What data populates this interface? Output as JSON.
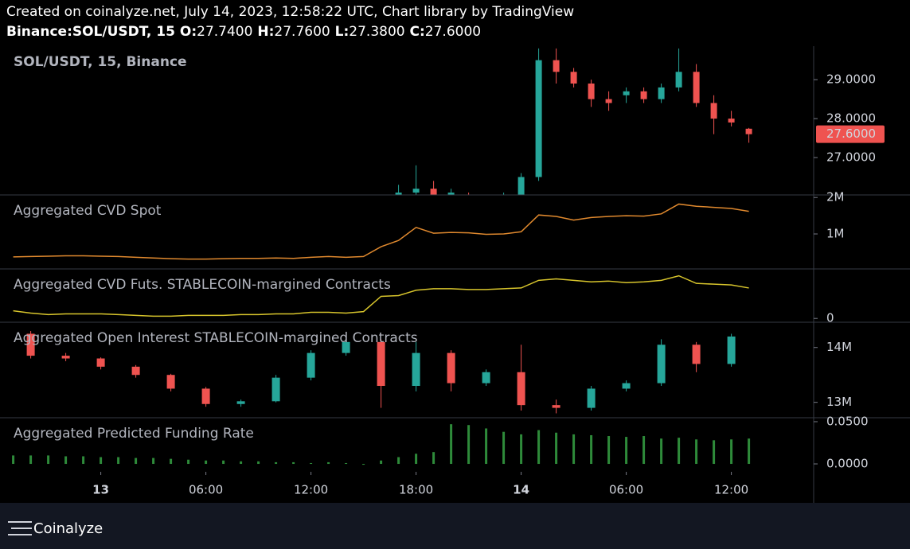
{
  "header": {
    "line1": "Created on coinalyze.net, July 14, 2023, 12:58:22 UTC, Chart library by TradingView",
    "symbol": "Binance:SOL/USDT, 15",
    "ohlc": [
      {
        "label": "O:",
        "value": "27.7400"
      },
      {
        "label": "H:",
        "value": "27.7600"
      },
      {
        "label": "L:",
        "value": "27.3800"
      },
      {
        "label": "C:",
        "value": "27.6000"
      }
    ]
  },
  "footer": {
    "brand": "Coinalyze"
  },
  "chart_data": [
    {
      "type": "candlestick",
      "title": "SOL/USDT, 15, Binance",
      "up_color": "#26a69a",
      "down_color": "#ef5350",
      "x": [
        17,
        18,
        19,
        20,
        21,
        22,
        23,
        24,
        25,
        26,
        27,
        28,
        29,
        30,
        31,
        32,
        33,
        34,
        35,
        36,
        37
      ],
      "open": [
        25.8,
        26.1,
        26.2,
        26.0,
        26.0,
        25.9,
        25.8,
        26.0,
        26.5,
        29.5,
        29.2,
        28.9,
        28.5,
        28.6,
        28.7,
        28.5,
        28.8,
        29.2,
        28.4,
        28.0,
        27.74
      ],
      "high": [
        26.3,
        26.8,
        26.4,
        26.2,
        26.1,
        26.0,
        26.1,
        26.6,
        29.8,
        29.8,
        29.3,
        29.0,
        28.7,
        28.8,
        28.8,
        28.9,
        29.8,
        29.4,
        28.6,
        28.2,
        27.76
      ],
      "low": [
        25.7,
        25.9,
        25.8,
        25.8,
        25.7,
        25.7,
        25.7,
        25.9,
        26.4,
        28.9,
        28.8,
        28.3,
        28.2,
        28.4,
        28.4,
        28.4,
        28.7,
        28.3,
        27.6,
        27.8,
        27.38
      ],
      "close": [
        26.1,
        26.2,
        26.0,
        26.1,
        25.9,
        25.8,
        26.0,
        26.5,
        29.5,
        29.2,
        28.9,
        28.5,
        28.4,
        28.7,
        28.5,
        28.8,
        29.2,
        28.4,
        28.0,
        27.9,
        27.6
      ],
      "last_price": {
        "value": 27.6,
        "label": "27.6000"
      },
      "ylim": [
        26.04,
        29.86
      ],
      "yticks": [
        {
          "value": 27,
          "label": "27.0000"
        },
        {
          "value": 28,
          "label": "28.0000"
        },
        {
          "value": 29,
          "label": "29.0000"
        }
      ]
    },
    {
      "type": "line",
      "title": "Aggregated CVD Spot",
      "color": "#e0892e",
      "x": [
        -5,
        -4,
        -3,
        -2,
        -1,
        0,
        1,
        2,
        3,
        4,
        5,
        6,
        7,
        8,
        9,
        10,
        11,
        12,
        13,
        14,
        15,
        16,
        17,
        18,
        19,
        20,
        21,
        22,
        23,
        24,
        25,
        26,
        27,
        28,
        29,
        30,
        31,
        32,
        33,
        34,
        35,
        36,
        37
      ],
      "values": [
        0.37,
        0.38,
        0.39,
        0.4,
        0.4,
        0.39,
        0.38,
        0.36,
        0.34,
        0.32,
        0.31,
        0.31,
        0.32,
        0.33,
        0.33,
        0.34,
        0.33,
        0.36,
        0.38,
        0.36,
        0.38,
        0.65,
        0.82,
        1.18,
        1.02,
        1.04,
        1.03,
        0.99,
        1.0,
        1.06,
        1.52,
        1.48,
        1.38,
        1.45,
        1.48,
        1.5,
        1.49,
        1.55,
        1.82,
        1.76,
        1.73,
        1.7,
        1.62
      ],
      "ylim": [
        0.04,
        2.07
      ],
      "yticks": [
        {
          "value": 1,
          "label": "1M"
        },
        {
          "value": 2,
          "label": "2M"
        }
      ]
    },
    {
      "type": "line",
      "title": "Aggregated CVD Futs. STABLECOIN-margined Contracts",
      "color": "#d8c52c",
      "x": [
        -5,
        -4,
        -3,
        -2,
        -1,
        0,
        1,
        2,
        3,
        4,
        5,
        6,
        7,
        8,
        9,
        10,
        11,
        12,
        13,
        14,
        15,
        16,
        17,
        18,
        19,
        20,
        21,
        22,
        23,
        24,
        25,
        26,
        27,
        28,
        29,
        30,
        31,
        32,
        33,
        34,
        35,
        36,
        37
      ],
      "values": [
        1.0,
        0.7,
        0.5,
        0.6,
        0.6,
        0.6,
        0.5,
        0.4,
        0.3,
        0.3,
        0.4,
        0.4,
        0.4,
        0.5,
        0.5,
        0.6,
        0.6,
        0.8,
        0.8,
        0.7,
        0.9,
        2.9,
        3.0,
        3.7,
        3.9,
        3.9,
        3.8,
        3.8,
        3.9,
        4.0,
        5.0,
        5.2,
        5.0,
        4.8,
        4.9,
        4.7,
        4.8,
        5.0,
        5.6,
        4.6,
        4.5,
        4.4,
        4.0
      ],
      "ylim": [
        -0.5,
        6.5
      ],
      "yticks": [
        0
      ]
    },
    {
      "type": "candlestick",
      "title": "Aggregated Open Interest STABLECOIN-margined Contracts",
      "up_color": "#26a69a",
      "down_color": "#ef5350",
      "x": [
        -4,
        -2,
        0,
        2,
        4,
        6,
        8,
        10,
        12,
        14,
        16,
        18,
        20,
        22,
        24,
        26,
        28,
        30,
        32,
        34,
        36
      ],
      "open": [
        14.25,
        13.85,
        13.8,
        13.65,
        13.5,
        13.25,
        12.97,
        13.02,
        13.45,
        13.9,
        14.1,
        13.3,
        13.9,
        13.35,
        13.55,
        12.95,
        12.9,
        13.25,
        13.35,
        14.05,
        13.7
      ],
      "high": [
        14.3,
        13.9,
        13.82,
        13.68,
        13.52,
        13.28,
        13.05,
        13.5,
        13.95,
        14.2,
        14.15,
        14.1,
        13.95,
        13.6,
        14.05,
        13.05,
        13.3,
        13.4,
        14.15,
        14.1,
        14.25
      ],
      "low": [
        13.8,
        13.75,
        13.6,
        13.45,
        13.2,
        12.92,
        12.92,
        13.0,
        13.4,
        13.85,
        12.9,
        13.2,
        13.2,
        13.3,
        12.85,
        12.8,
        12.85,
        13.2,
        13.3,
        13.55,
        13.65
      ],
      "close": [
        13.85,
        13.8,
        13.65,
        13.5,
        13.25,
        12.97,
        13.02,
        13.45,
        13.9,
        14.1,
        13.3,
        13.9,
        13.35,
        13.55,
        12.95,
        12.9,
        13.25,
        13.35,
        14.05,
        13.7,
        14.2
      ],
      "ylim": [
        12.72,
        14.46
      ],
      "yticks": [
        {
          "value": 13,
          "label": "13M"
        },
        {
          "value": 14,
          "label": "14M"
        }
      ]
    },
    {
      "type": "bar",
      "title": "Aggregated Predicted Funding Rate",
      "color": "#2e8b3a",
      "x": [
        -5,
        -4,
        -3,
        -2,
        -1,
        0,
        1,
        2,
        3,
        4,
        5,
        6,
        7,
        8,
        9,
        10,
        11,
        12,
        13,
        14,
        15,
        16,
        17,
        18,
        19,
        20,
        21,
        22,
        23,
        24,
        25,
        26,
        27,
        28,
        29,
        30,
        31,
        32,
        33,
        34,
        35,
        36,
        37
      ],
      "values": [
        0.01,
        0.01,
        0.01,
        0.009,
        0.009,
        0.008,
        0.008,
        0.007,
        0.007,
        0.006,
        0.005,
        0.004,
        0.004,
        0.003,
        0.003,
        0.002,
        0.002,
        0.001,
        0.002,
        0.001,
        -0.001,
        0.004,
        0.008,
        0.012,
        0.014,
        0.047,
        0.046,
        0.042,
        0.038,
        0.035,
        0.04,
        0.037,
        0.035,
        0.034,
        0.033,
        0.032,
        0.033,
        0.03,
        0.031,
        0.029,
        0.028,
        0.029,
        0.03
      ],
      "ylim": [
        -0.0094,
        0.0547
      ],
      "yticks": [
        {
          "value": 0,
          "label": "0.0000"
        },
        {
          "value": 0.05,
          "label": "0.0500"
        }
      ],
      "xlim": [
        -5.3,
        40.7
      ],
      "xticks": [
        {
          "value": 0,
          "label": "13"
        },
        {
          "value": 6,
          "label": "06:00"
        },
        {
          "value": 12,
          "label": "12:00"
        },
        {
          "value": 18,
          "label": "18:00"
        },
        {
          "value": 24,
          "label": "14"
        },
        {
          "value": 30,
          "label": "06:00"
        },
        {
          "value": 36,
          "label": "12:00"
        }
      ]
    }
  ]
}
